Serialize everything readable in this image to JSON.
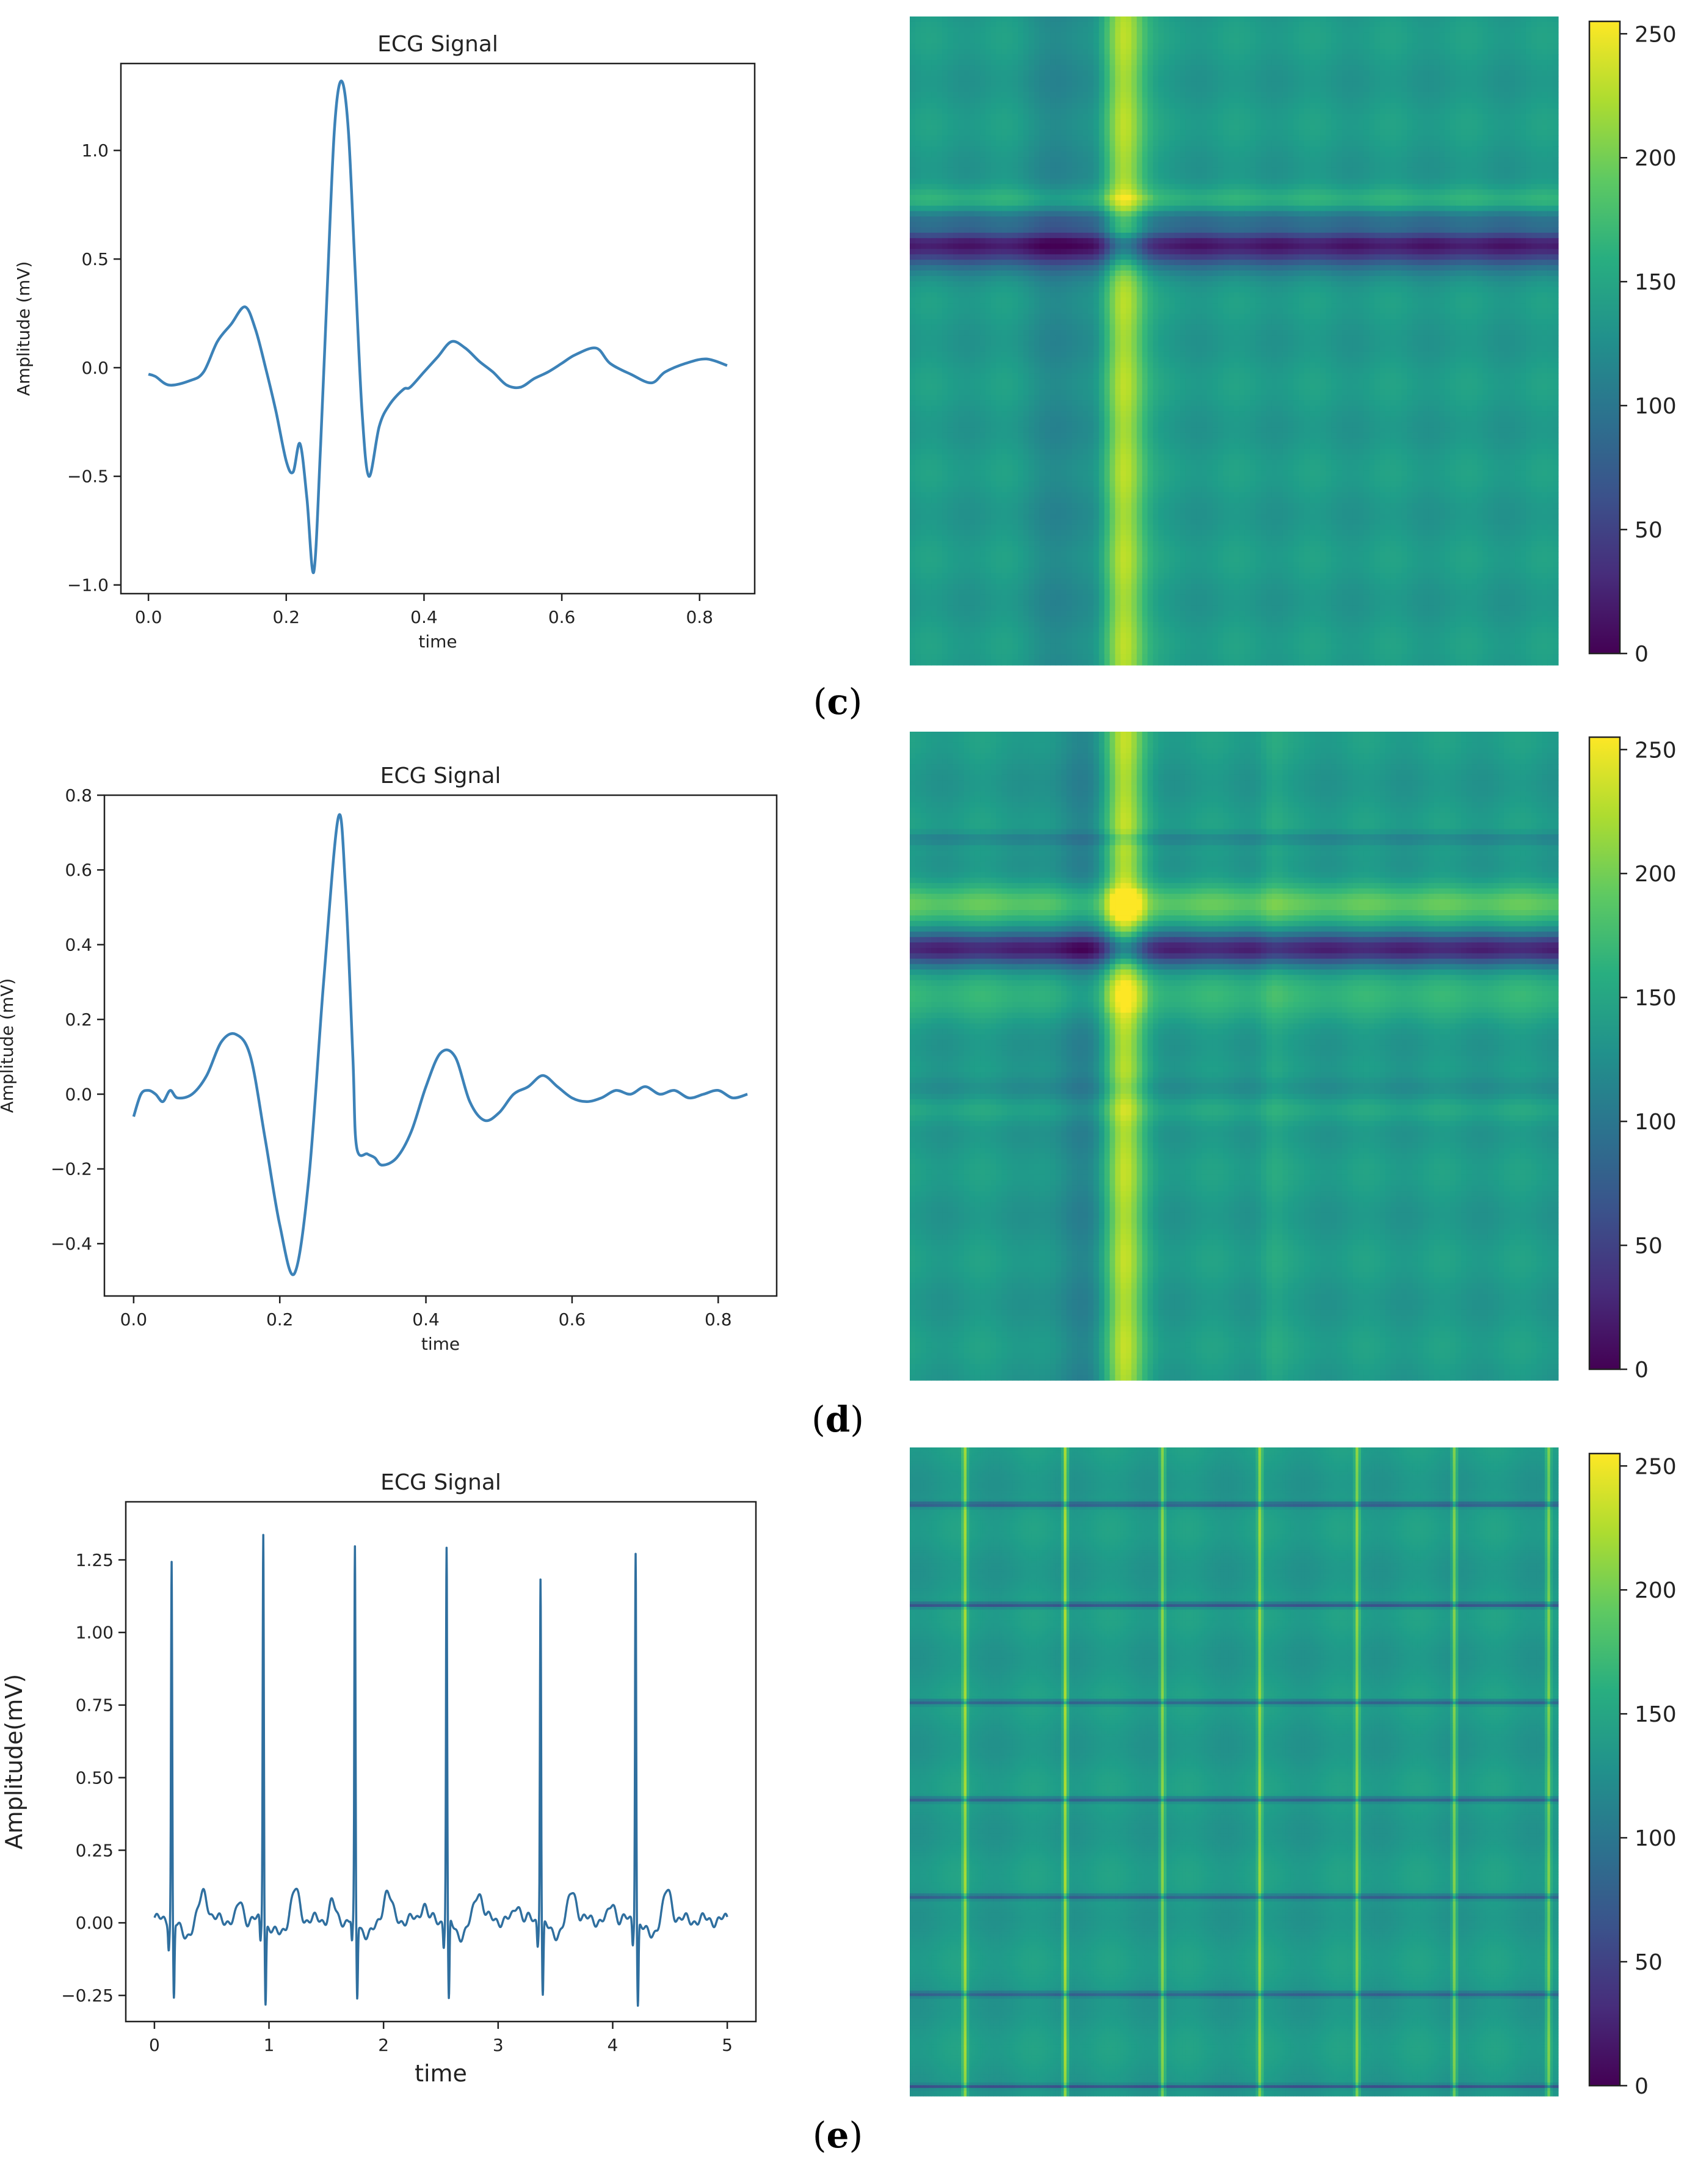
{
  "panels": [
    {
      "label": "(c)",
      "label_letter": "c",
      "ecg": {
        "type": "line",
        "title": "ECG Signal",
        "xlabel": "time",
        "ylabel": "Amplitude (mV)",
        "xlim": [
          -0.04,
          0.88
        ],
        "ylim": [
          -1.04,
          1.4
        ],
        "xticks": [
          0.0,
          0.2,
          0.4,
          0.6,
          0.8
        ],
        "xtick_labels": [
          "0.0",
          "0.2",
          "0.4",
          "0.6",
          "0.8"
        ],
        "yticks": [
          -1.0,
          -0.5,
          0.0,
          0.5,
          1.0
        ],
        "ytick_labels": [
          "−1.0",
          "−0.5",
          "0.0",
          "0.5",
          "1.0"
        ],
        "line_color": "#3c82b8",
        "x": [
          0.0,
          0.01,
          0.03,
          0.06,
          0.08,
          0.1,
          0.12,
          0.14,
          0.155,
          0.17,
          0.185,
          0.2,
          0.21,
          0.22,
          0.23,
          0.24,
          0.25,
          0.26,
          0.27,
          0.28,
          0.29,
          0.3,
          0.31,
          0.32,
          0.335,
          0.35,
          0.37,
          0.38,
          0.4,
          0.42,
          0.44,
          0.46,
          0.48,
          0.5,
          0.52,
          0.54,
          0.56,
          0.58,
          0.6,
          0.62,
          0.65,
          0.67,
          0.7,
          0.73,
          0.75,
          0.78,
          0.81,
          0.84
        ],
        "values": [
          -0.03,
          -0.04,
          -0.08,
          -0.06,
          -0.02,
          0.12,
          0.2,
          0.28,
          0.18,
          0.0,
          -0.2,
          -0.43,
          -0.48,
          -0.35,
          -0.6,
          -0.94,
          -0.35,
          0.4,
          1.1,
          1.32,
          1.1,
          0.45,
          -0.2,
          -0.5,
          -0.27,
          -0.17,
          -0.1,
          -0.09,
          -0.02,
          0.05,
          0.12,
          0.09,
          0.03,
          -0.02,
          -0.08,
          -0.09,
          -0.05,
          -0.02,
          0.02,
          0.06,
          0.09,
          0.02,
          -0.03,
          -0.07,
          -0.02,
          0.02,
          0.04,
          0.01
        ]
      },
      "gaf": {
        "type": "heatmap",
        "colorbar_ticks": [
          0,
          50,
          100,
          150,
          200,
          250
        ],
        "colorbar_labels": [
          "0",
          "50",
          "100",
          "150",
          "200",
          "250"
        ],
        "vmin": 0,
        "vmax": 255,
        "base": 138,
        "rows": [
          {
            "p": 0.285,
            "w": 0.02,
            "a": 35
          },
          {
            "p": 0.33,
            "w": 0.015,
            "a": 55
          },
          {
            "p": 0.335,
            "w": 0.03,
            "a": -15
          },
          {
            "p": 0.35,
            "w": 0.045,
            "a": -120
          },
          {
            "p": 0.385,
            "w": 0.03,
            "a": 22
          }
        ],
        "cols": [
          {
            "p": 0.245,
            "w": 0.055,
            "a": -20
          },
          {
            "p": 0.33,
            "w": 0.032,
            "a": 95
          },
          {
            "p": 0.29,
            "w": 0.02,
            "a": -10
          }
        ]
      }
    },
    {
      "label": "(d)",
      "label_letter": "d",
      "ecg": {
        "type": "line",
        "title": "ECG Signal",
        "xlabel": "time",
        "ylabel": "Amplitude (mV)",
        "xlim": [
          -0.04,
          0.88
        ],
        "ylim": [
          -0.54,
          0.8
        ],
        "xticks": [
          0.0,
          0.2,
          0.4,
          0.6,
          0.8
        ],
        "xtick_labels": [
          "0.0",
          "0.2",
          "0.4",
          "0.6",
          "0.8"
        ],
        "yticks": [
          -0.4,
          -0.2,
          0.0,
          0.2,
          0.4,
          0.6,
          0.8
        ],
        "ytick_labels": [
          "−0.4",
          "−0.2",
          "0.0",
          "0.2",
          "0.4",
          "0.6",
          "0.8"
        ],
        "line_color": "#3c82b8",
        "x": [
          0.0,
          0.01,
          0.02,
          0.03,
          0.04,
          0.05,
          0.06,
          0.08,
          0.1,
          0.12,
          0.14,
          0.16,
          0.18,
          0.2,
          0.22,
          0.24,
          0.26,
          0.28,
          0.29,
          0.3,
          0.305,
          0.32,
          0.33,
          0.34,
          0.36,
          0.38,
          0.4,
          0.42,
          0.44,
          0.46,
          0.48,
          0.5,
          0.52,
          0.54,
          0.56,
          0.58,
          0.6,
          0.62,
          0.64,
          0.66,
          0.68,
          0.7,
          0.72,
          0.74,
          0.76,
          0.78,
          0.8,
          0.82,
          0.84
        ],
        "values": [
          -0.06,
          0.0,
          0.01,
          0.0,
          -0.02,
          0.01,
          -0.01,
          0.0,
          0.05,
          0.14,
          0.16,
          0.1,
          -0.12,
          -0.35,
          -0.48,
          -0.22,
          0.3,
          0.74,
          0.55,
          0.1,
          -0.14,
          -0.16,
          -0.17,
          -0.19,
          -0.17,
          -0.1,
          0.02,
          0.11,
          0.1,
          -0.02,
          -0.07,
          -0.05,
          0.0,
          0.02,
          0.05,
          0.02,
          -0.01,
          -0.02,
          -0.01,
          0.01,
          0.0,
          0.02,
          0.0,
          0.01,
          -0.01,
          0.0,
          0.01,
          -0.01,
          0.0
        ]
      },
      "gaf": {
        "type": "heatmap",
        "colorbar_ticks": [
          0,
          50,
          100,
          150,
          200,
          250
        ],
        "colorbar_labels": [
          "0",
          "50",
          "100",
          "150",
          "200",
          "250"
        ],
        "vmin": 0,
        "vmax": 255,
        "base": 138,
        "rows": [
          {
            "p": 0.165,
            "w": 0.01,
            "a": -25
          },
          {
            "p": 0.265,
            "w": 0.03,
            "a": 50
          },
          {
            "p": 0.335,
            "w": 0.025,
            "a": -110
          },
          {
            "p": 0.405,
            "w": 0.04,
            "a": 25
          },
          {
            "p": 0.55,
            "w": 0.02,
            "a": -18
          },
          {
            "p": 0.585,
            "w": 0.02,
            "a": 14
          }
        ],
        "cols": [
          {
            "p": 0.26,
            "w": 0.045,
            "a": -25
          },
          {
            "p": 0.33,
            "w": 0.03,
            "a": 90
          },
          {
            "p": 0.56,
            "w": 0.02,
            "a": 12
          }
        ]
      }
    },
    {
      "label": "(e)",
      "label_letter": "e",
      "ecg": {
        "type": "line",
        "title": "ECG Signal",
        "xlabel": "time",
        "ylabel": "Amplitude(mV)",
        "xlim": [
          -0.25,
          5.25
        ],
        "ylim": [
          -0.34,
          1.45
        ],
        "xticks": [
          0,
          1,
          2,
          3,
          4,
          5
        ],
        "xtick_labels": [
          "0",
          "1",
          "2",
          "3",
          "4",
          "5"
        ],
        "yticks": [
          -0.25,
          0.0,
          0.25,
          0.5,
          0.75,
          1.0,
          1.25
        ],
        "ytick_labels": [
          "−0.25",
          "0.00",
          "0.25",
          "0.50",
          "0.75",
          "1.00",
          "1.25"
        ],
        "line_color": "#2f6f9f",
        "beats": [
          {
            "t": 0.15,
            "peak": 1.26,
            "trough": -0.26
          },
          {
            "t": 0.95,
            "peak": 1.37,
            "trough": -0.27
          },
          {
            "t": 1.75,
            "peak": 1.29,
            "trough": -0.26
          },
          {
            "t": 2.55,
            "peak": 1.31,
            "trough": -0.28
          },
          {
            "t": 3.37,
            "peak": 1.22,
            "trough": -0.25
          },
          {
            "t": 4.2,
            "peak": 1.31,
            "trough": -0.28
          }
        ],
        "x_end": 5.0
      },
      "gaf": {
        "type": "heatmap",
        "colorbar_ticks": [
          0,
          50,
          100,
          150,
          200,
          250
        ],
        "colorbar_labels": [
          "0",
          "50",
          "100",
          "150",
          "200",
          "250"
        ],
        "vmin": 0,
        "vmax": 255,
        "base": 138,
        "rows": [
          {
            "p": 0.088,
            "w": 0.004,
            "a": -65
          },
          {
            "p": 0.243,
            "w": 0.004,
            "a": -75
          },
          {
            "p": 0.393,
            "w": 0.004,
            "a": -60
          },
          {
            "p": 0.543,
            "w": 0.004,
            "a": -60
          },
          {
            "p": 0.693,
            "w": 0.004,
            "a": -60
          },
          {
            "p": 0.843,
            "w": 0.004,
            "a": -55
          },
          {
            "p": 0.985,
            "w": 0.003,
            "a": -70
          }
        ],
        "cols": [
          {
            "p": 0.085,
            "w": 0.004,
            "a": 75
          },
          {
            "p": 0.24,
            "w": 0.004,
            "a": 85
          },
          {
            "p": 0.39,
            "w": 0.004,
            "a": 70
          },
          {
            "p": 0.54,
            "w": 0.004,
            "a": 70
          },
          {
            "p": 0.69,
            "w": 0.004,
            "a": 70
          },
          {
            "p": 0.84,
            "w": 0.004,
            "a": 70
          },
          {
            "p": 0.985,
            "w": 0.004,
            "a": 65
          }
        ]
      }
    }
  ],
  "chart_data": [
    {
      "type": "line",
      "title": "ECG Signal",
      "xlabel": "time",
      "ylabel": "Amplitude (mV)",
      "panel": "(c)",
      "xlim": [
        -0.04,
        0.88
      ],
      "ylim": [
        -1.04,
        1.4
      ]
    },
    {
      "type": "heatmap",
      "panel": "(c)",
      "colorbar_range": [
        0,
        255
      ]
    },
    {
      "type": "line",
      "title": "ECG Signal",
      "xlabel": "time",
      "ylabel": "Amplitude (mV)",
      "panel": "(d)",
      "xlim": [
        -0.04,
        0.88
      ],
      "ylim": [
        -0.54,
        0.8
      ]
    },
    {
      "type": "heatmap",
      "panel": "(d)",
      "colorbar_range": [
        0,
        255
      ]
    },
    {
      "type": "line",
      "title": "ECG Signal",
      "xlabel": "time",
      "ylabel": "Amplitude(mV)",
      "panel": "(e)",
      "xlim": [
        -0.25,
        5.25
      ],
      "ylim": [
        -0.34,
        1.45
      ]
    },
    {
      "type": "heatmap",
      "panel": "(e)",
      "colorbar_range": [
        0,
        255
      ]
    }
  ]
}
